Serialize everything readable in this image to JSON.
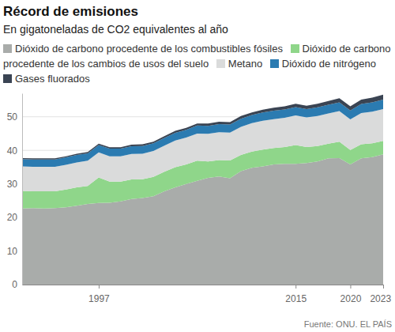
{
  "chart_data": {
    "type": "stacked_area",
    "title": "Récord de emisiones",
    "subtitle": "En gigatoneladas de CO2 equivalentes al año",
    "source": "Fuente: ONU. EL PAÍS",
    "stacked": true,
    "grid": true,
    "x": [
      1990,
      1991,
      1992,
      1993,
      1994,
      1995,
      1996,
      1997,
      1998,
      1999,
      2000,
      2001,
      2002,
      2003,
      2004,
      2005,
      2006,
      2007,
      2008,
      2009,
      2010,
      2011,
      2012,
      2013,
      2014,
      2015,
      2016,
      2017,
      2018,
      2019,
      2020,
      2021,
      2022,
      2023
    ],
    "xlim": [
      1990,
      2023
    ],
    "xticks": [
      1997,
      2015,
      2020,
      2023
    ],
    "ylim": [
      0,
      57
    ],
    "yticks": [
      0,
      10,
      20,
      30,
      40,
      50
    ],
    "series": [
      {
        "name": "Dióxido de carbono procedente de los combustibles fósiles",
        "color": "#a9acaa",
        "values": [
          22.7,
          22.8,
          22.7,
          22.8,
          23.0,
          23.5,
          24.0,
          24.3,
          24.4,
          24.8,
          25.5,
          25.8,
          26.3,
          27.8,
          29.0,
          30.0,
          30.9,
          31.8,
          32.2,
          31.7,
          33.8,
          34.8,
          35.2,
          35.8,
          36.0,
          36.0,
          36.2,
          36.7,
          37.6,
          37.7,
          35.8,
          37.6,
          38.0,
          38.8
        ]
      },
      {
        "name": "Dióxido de carbono procedente de los cambios de usos del suelo",
        "color": "#8fd68a",
        "values": [
          5.2,
          5.0,
          5.1,
          5.0,
          5.3,
          5.5,
          5.4,
          7.6,
          6.3,
          5.9,
          5.8,
          5.6,
          5.8,
          5.8,
          6.0,
          5.8,
          6.0,
          4.9,
          4.9,
          5.3,
          4.8,
          4.8,
          5.0,
          4.9,
          5.0,
          5.6,
          4.8,
          4.6,
          4.4,
          4.9,
          4.3,
          4.2,
          4.1,
          4.0
        ]
      },
      {
        "name": "Metano",
        "color": "#dadbdb",
        "values": [
          7.3,
          7.3,
          7.3,
          7.3,
          7.4,
          7.4,
          7.5,
          7.5,
          7.5,
          7.5,
          7.6,
          7.6,
          7.7,
          7.8,
          7.9,
          8.0,
          8.1,
          8.2,
          8.3,
          8.3,
          8.4,
          8.5,
          8.6,
          8.6,
          8.7,
          8.8,
          8.8,
          8.9,
          9.0,
          9.1,
          9.1,
          9.3,
          9.4,
          9.5
        ]
      },
      {
        "name": "Dióxido de nitrógeno",
        "color": "#2b7bb1",
        "values": [
          2.2,
          2.2,
          2.2,
          2.2,
          2.2,
          2.2,
          2.2,
          2.2,
          2.3,
          2.3,
          2.3,
          2.3,
          2.3,
          2.3,
          2.3,
          2.3,
          2.4,
          2.4,
          2.4,
          2.4,
          2.4,
          2.4,
          2.5,
          2.5,
          2.5,
          2.5,
          2.5,
          2.6,
          2.6,
          2.6,
          2.7,
          2.7,
          2.8,
          2.8
        ]
      },
      {
        "name": "Gases fluorados",
        "color": "#3a4453",
        "values": [
          0.3,
          0.3,
          0.3,
          0.3,
          0.3,
          0.4,
          0.4,
          0.4,
          0.4,
          0.4,
          0.5,
          0.5,
          0.5,
          0.5,
          0.6,
          0.6,
          0.6,
          0.7,
          0.7,
          0.7,
          0.8,
          0.8,
          0.8,
          0.9,
          0.9,
          1.0,
          1.0,
          1.1,
          1.1,
          1.2,
          1.2,
          1.3,
          1.4,
          1.5
        ]
      }
    ]
  }
}
